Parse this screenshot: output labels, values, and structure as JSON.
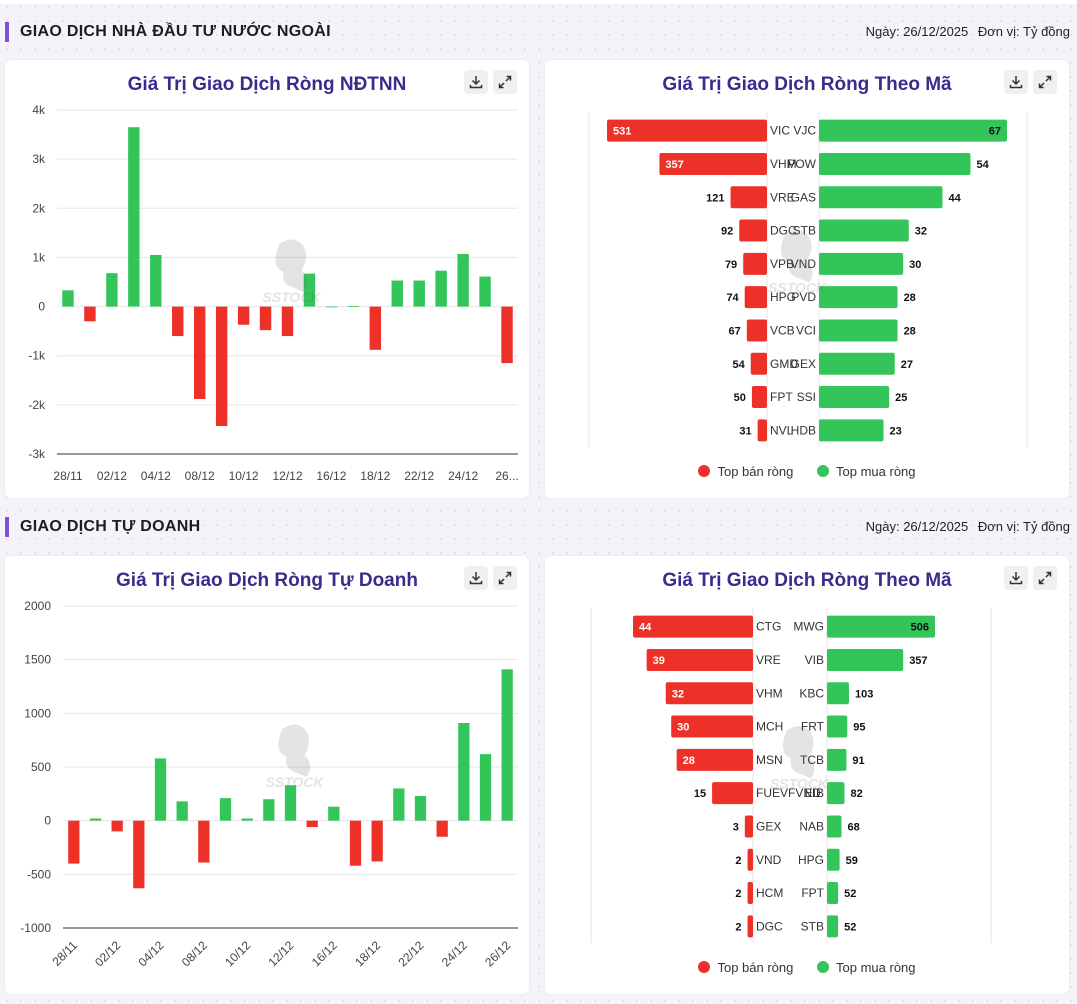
{
  "colors": {
    "positive": "#33c55a",
    "negative": "#ee3128",
    "title": "#3c2a8c",
    "accent": "#7a52d8"
  },
  "icons": {
    "download": "download-icon",
    "expand": "expand-icon"
  },
  "watermark": {
    "text": "SSTOCK"
  },
  "sections": [
    {
      "title": "GIAO DỊCH NHÀ ĐẦU TƯ NƯỚC NGOÀI",
      "date": "Ngày: 26/12/2025",
      "unit": "Đơn vị: Tỷ đồng",
      "left_title": "Giá Trị Giao Dịch Ròng NĐTNN",
      "right_title": "Giá Trị Giao Dịch Ròng Theo Mã",
      "legend_sell": "Top bán ròng",
      "legend_buy": "Top mua ròng"
    },
    {
      "title": "GIAO DỊCH TỰ DOANH",
      "date": "Ngày: 26/12/2025",
      "unit": "Đơn vị: Tỷ đồng",
      "left_title": "Giá Trị Giao Dịch Ròng Tự Doanh",
      "right_title": "Giá Trị Giao Dịch Ròng Theo Mã",
      "legend_sell": "Top bán ròng",
      "legend_buy": "Top mua ròng"
    }
  ],
  "chart_data": [
    {
      "type": "bar",
      "title": "Giá Trị Giao Dịch Ròng NĐTNN",
      "ylim": [
        -3000,
        4000
      ],
      "yticks": [
        4000,
        3000,
        2000,
        1000,
        0,
        -1000,
        -2000,
        -3000
      ],
      "ytick_labels": [
        "4k",
        "3k",
        "2k",
        "1k",
        "0",
        "-1k",
        "-2k",
        "-3k"
      ],
      "xtick_labels": [
        "28/11",
        "02/12",
        "04/12",
        "08/12",
        "10/12",
        "12/12",
        "16/12",
        "18/12",
        "22/12",
        "24/12",
        "26..."
      ],
      "xtick_rotate": false,
      "grid": true,
      "values": [
        330,
        -300,
        680,
        3650,
        1050,
        -600,
        -1880,
        -2430,
        -370,
        -480,
        -600,
        670,
        0,
        10,
        -880,
        530,
        530,
        730,
        1070,
        610,
        -1150
      ]
    },
    {
      "type": "bar",
      "title": "Giá Trị Giao Dịch Ròng Tự Doanh",
      "ylim": [
        -1000,
        2000
      ],
      "yticks": [
        2000,
        1500,
        1000,
        500,
        0,
        -500,
        -1000
      ],
      "ytick_labels": [
        "2000",
        "1500",
        "1000",
        "500",
        "0",
        "-500",
        "-1000"
      ],
      "xtick_labels": [
        "28/11",
        "02/12",
        "04/12",
        "08/12",
        "10/12",
        "12/12",
        "16/12",
        "18/12",
        "22/12",
        "24/12",
        "26/12"
      ],
      "xtick_rotate": true,
      "grid": true,
      "values": [
        -400,
        20,
        -100,
        -630,
        580,
        180,
        -390,
        210,
        20,
        200,
        330,
        -60,
        130,
        -420,
        -380,
        300,
        230,
        -150,
        910,
        620,
        1410
      ]
    },
    {
      "type": "bar",
      "title": "Giá Trị Giao Dịch Ròng Theo Mã",
      "orientation": "horizontal",
      "sell": [
        {
          "code": "VIC",
          "value": 531
        },
        {
          "code": "VHM",
          "value": 357
        },
        {
          "code": "VRE",
          "value": 121
        },
        {
          "code": "DGC",
          "value": 92
        },
        {
          "code": "VPB",
          "value": 79
        },
        {
          "code": "HPG",
          "value": 74
        },
        {
          "code": "VCB",
          "value": 67
        },
        {
          "code": "GMD",
          "value": 54
        },
        {
          "code": "FPT",
          "value": 50
        },
        {
          "code": "NVL",
          "value": 31
        }
      ],
      "buy": [
        {
          "code": "VJC",
          "value": 67
        },
        {
          "code": "POW",
          "value": 54
        },
        {
          "code": "GAS",
          "value": 44
        },
        {
          "code": "STB",
          "value": 32
        },
        {
          "code": "VND",
          "value": 30
        },
        {
          "code": "PVD",
          "value": 28
        },
        {
          "code": "VCI",
          "value": 28
        },
        {
          "code": "GEX",
          "value": 27
        },
        {
          "code": "SSI",
          "value": 25
        },
        {
          "code": "HDB",
          "value": 23
        }
      ],
      "legend": [
        "Top bán ròng",
        "Top mua ròng"
      ]
    },
    {
      "type": "bar",
      "title": "Giá Trị Giao Dịch Ròng Theo Mã",
      "orientation": "horizontal",
      "sell": [
        {
          "code": "CTG",
          "value": 44
        },
        {
          "code": "VRE",
          "value": 39
        },
        {
          "code": "VHM",
          "value": 32
        },
        {
          "code": "MCH",
          "value": 30
        },
        {
          "code": "MSN",
          "value": 28
        },
        {
          "code": "FUEVFVND",
          "value": 15
        },
        {
          "code": "GEX",
          "value": 3
        },
        {
          "code": "VND",
          "value": 2
        },
        {
          "code": "HCM",
          "value": 2
        },
        {
          "code": "DGC",
          "value": 2
        }
      ],
      "buy": [
        {
          "code": "MWG",
          "value": 506
        },
        {
          "code": "VIB",
          "value": 357
        },
        {
          "code": "KBC",
          "value": 103
        },
        {
          "code": "FRT",
          "value": 95
        },
        {
          "code": "TCB",
          "value": 91
        },
        {
          "code": "EIB",
          "value": 82
        },
        {
          "code": "NAB",
          "value": 68
        },
        {
          "code": "HPG",
          "value": 59
        },
        {
          "code": "FPT",
          "value": 52
        },
        {
          "code": "STB",
          "value": 52
        }
      ],
      "legend": [
        "Top bán ròng",
        "Top mua ròng"
      ]
    }
  ]
}
